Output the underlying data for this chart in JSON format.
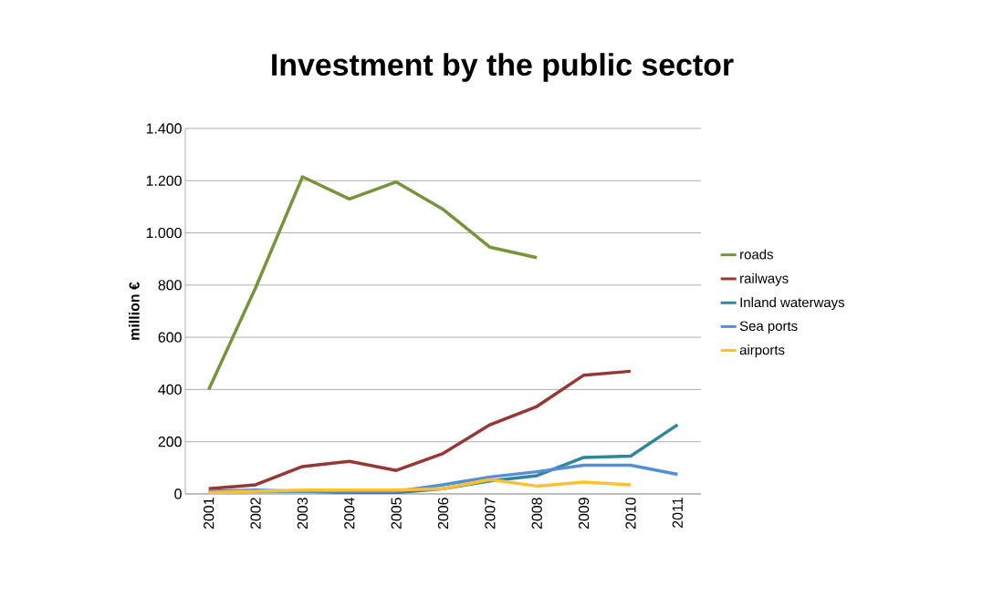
{
  "chart_data": {
    "type": "line",
    "title": "Investment by the public sector",
    "ylabel": "million €",
    "categories": [
      "2001",
      "2002",
      "2003",
      "2004",
      "2005",
      "2006",
      "2007",
      "2008",
      "2009",
      "2010",
      "2011"
    ],
    "ylim": [
      0,
      1400
    ],
    "yticks": [
      0,
      200,
      400,
      600,
      800,
      {
        "value": 1000,
        "label": "1.000"
      },
      {
        "value": 1200,
        "label": "1.200"
      },
      {
        "value": 1400,
        "label": "1.400"
      }
    ],
    "grid": "y",
    "legend": "right",
    "marker": "none",
    "line_style": "solid",
    "series": [
      {
        "name": "roads",
        "color": "#77933c",
        "values": [
          400,
          790,
          1215,
          1130,
          1195,
          1090,
          945,
          905,
          null,
          null,
          null
        ]
      },
      {
        "name": "railways",
        "color": "#953735",
        "values": [
          20,
          35,
          105,
          125,
          90,
          155,
          265,
          335,
          455,
          470,
          null
        ]
      },
      {
        "name": "Inland waterways",
        "color": "#31859c",
        "values": [
          10,
          10,
          10,
          5,
          5,
          20,
          50,
          70,
          140,
          145,
          265
        ]
      },
      {
        "name": "Sea ports",
        "color": "#558ed5",
        "values": [
          10,
          15,
          10,
          10,
          10,
          35,
          65,
          85,
          110,
          110,
          75
        ]
      },
      {
        "name": "airports",
        "color": "#ffc12e",
        "values": [
          5,
          10,
          15,
          15,
          15,
          20,
          55,
          30,
          45,
          35,
          null
        ]
      }
    ]
  }
}
